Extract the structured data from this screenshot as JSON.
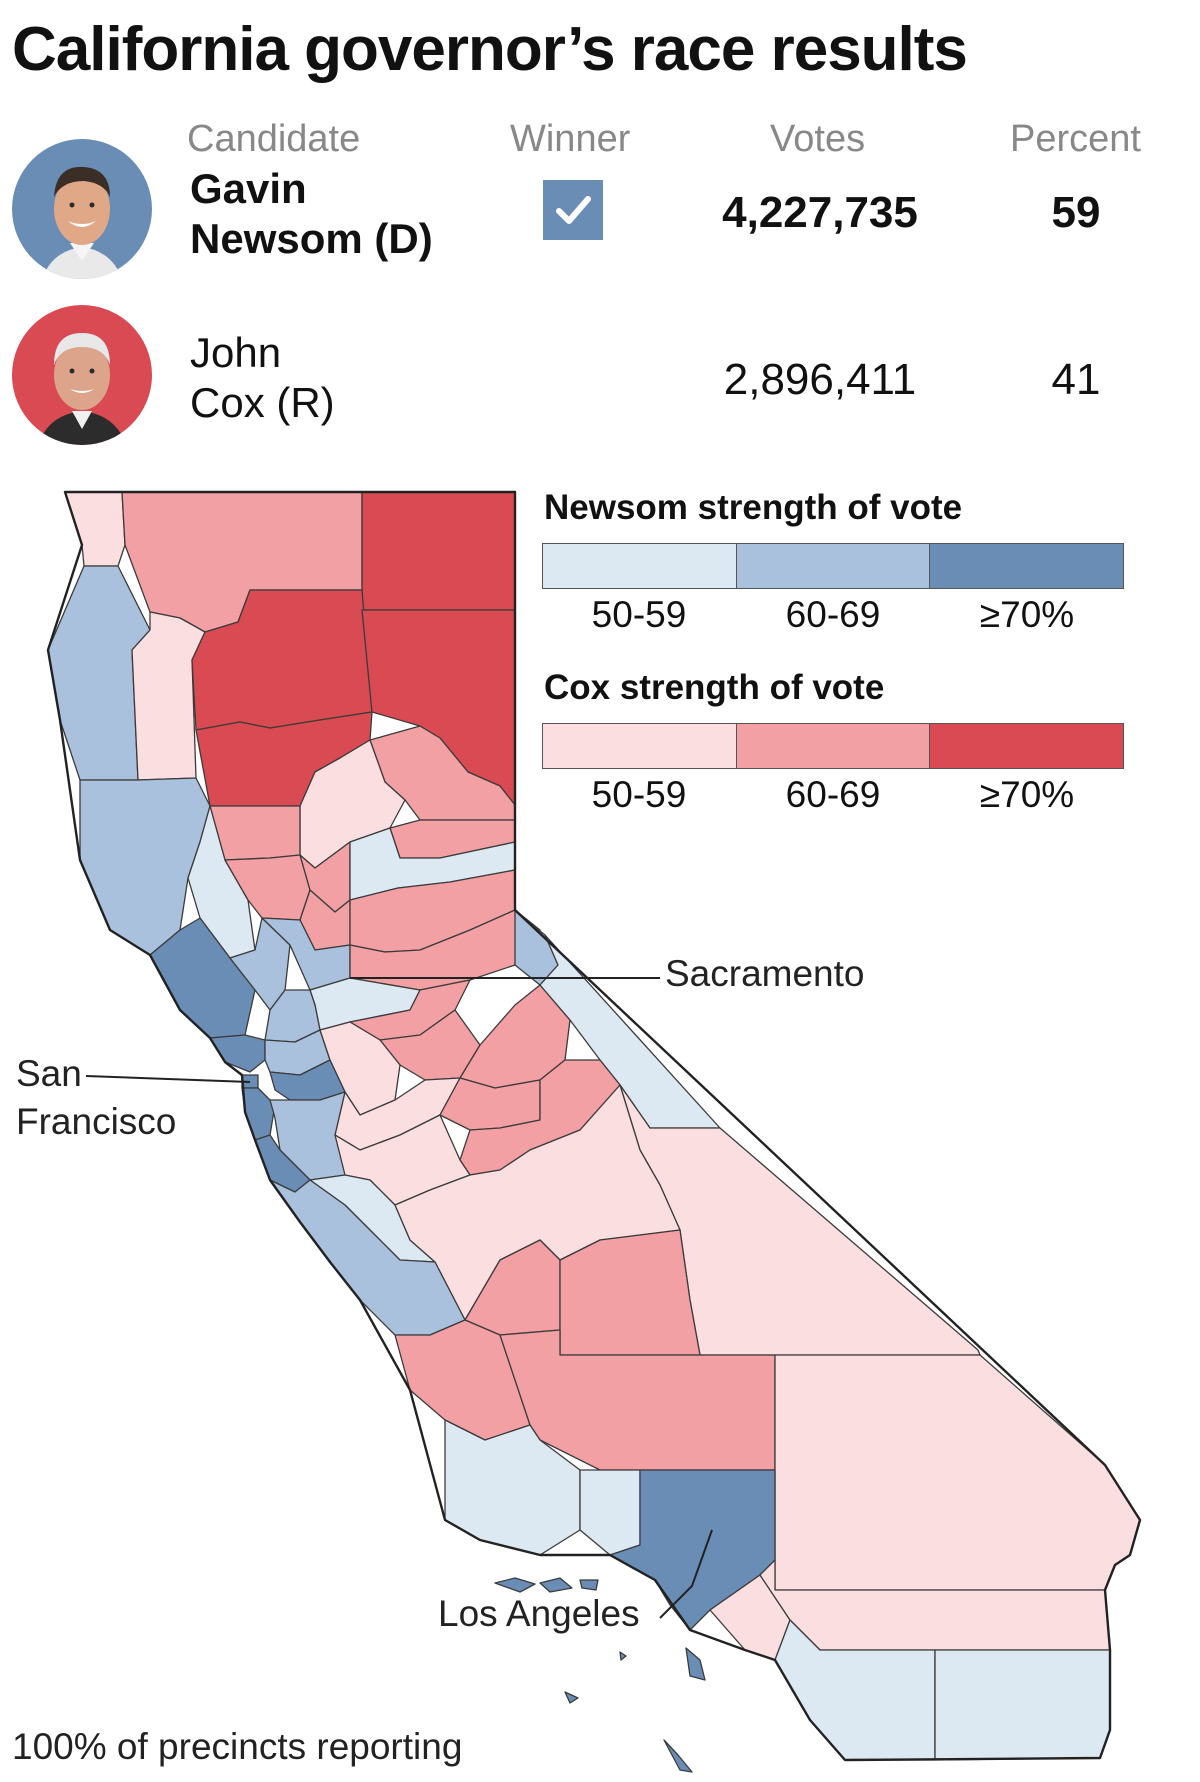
{
  "title": "California governor’s race results",
  "columns": {
    "candidate": "Candidate",
    "winner": "Winner",
    "votes": "Votes",
    "percent": "Percent"
  },
  "candidates": [
    {
      "name_line1": "Gavin",
      "name_line2": "Newsom (D)",
      "winner": true,
      "votes": "4,227,735",
      "percent": "59",
      "photo_color": "#6a8db6"
    },
    {
      "name_line1": "John",
      "name_line2": "Cox (R)",
      "winner": false,
      "votes": "2,896,411",
      "percent": "41",
      "photo_color": "#d94a52"
    }
  ],
  "legend": {
    "newsom_title": "Newsom strength of vote",
    "cox_title": "Cox strength of vote",
    "bins": [
      "50-59",
      "60-69",
      "≥70%"
    ],
    "newsom_colors": [
      "#dce8f2",
      "#a9c1dc",
      "#6a8db6"
    ],
    "cox_colors": [
      "#fbdee0",
      "#f2a0a4",
      "#da4a53"
    ]
  },
  "cities": {
    "sacramento": "Sacramento",
    "san_francisco_line1": "San",
    "san_francisco_line2": "Francisco",
    "los_angeles": "Los Angeles"
  },
  "footer": "100% of precincts reporting"
}
